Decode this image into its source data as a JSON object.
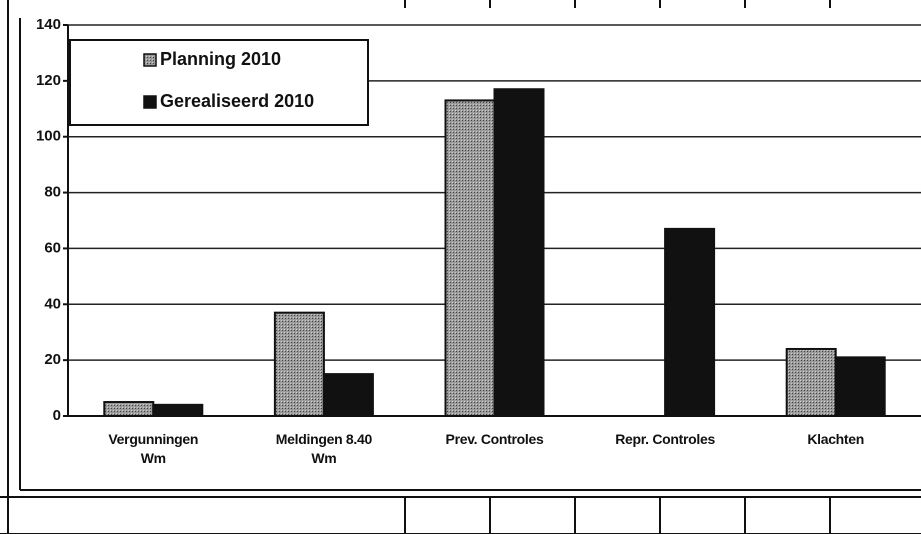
{
  "chart_data": {
    "type": "bar",
    "categories": [
      "Vergunningen\nWm",
      "Meldingen 8.40\nWm",
      "Prev. Controles",
      "Repr. Controles",
      "Klachten"
    ],
    "series": [
      {
        "name": "Planning 2010",
        "color": "#8a8a8a",
        "values": [
          5,
          37,
          113,
          null,
          24
        ]
      },
      {
        "name": "Gerealiseerd 2010",
        "color": "#111111",
        "values": [
          4,
          15,
          117,
          67,
          21
        ]
      }
    ],
    "ylim": [
      0,
      140
    ],
    "yticks": [
      0,
      20,
      40,
      60,
      80,
      100,
      120,
      140
    ],
    "grid": true,
    "legend": "upper left"
  }
}
